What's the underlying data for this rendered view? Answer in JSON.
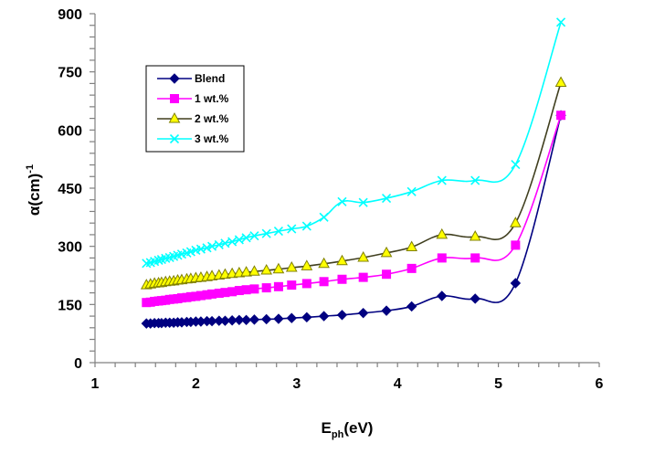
{
  "chart_data": {
    "type": "line",
    "title": "",
    "xlabel": "E",
    "xlabel_sub": "ph",
    "xlabel_suffix": "(eV)",
    "ylabel": "α(cm)",
    "ylabel_sup": "-1",
    "xlim": [
      1,
      6
    ],
    "ylim": [
      0,
      900
    ],
    "xticks": [
      1,
      2,
      3,
      4,
      5,
      6
    ],
    "xtick_labels": [
      "1",
      "2",
      "3",
      "4",
      "5",
      "6"
    ],
    "yticks": [
      0,
      150,
      300,
      450,
      600,
      750,
      900
    ],
    "ytick_labels": [
      "0",
      "150",
      "300",
      "450",
      "600",
      "750",
      "900"
    ],
    "grid": false,
    "legend_position": "top-left",
    "x": [
      1.51,
      1.55,
      1.59,
      1.63,
      1.66,
      1.7,
      1.74,
      1.78,
      1.82,
      1.86,
      1.91,
      1.95,
      2.0,
      2.05,
      2.11,
      2.16,
      2.23,
      2.29,
      2.36,
      2.43,
      2.5,
      2.58,
      2.7,
      2.82,
      2.95,
      3.1,
      3.27,
      3.45,
      3.66,
      3.89,
      4.14,
      4.44,
      4.77,
      5.17,
      5.62
    ],
    "series": [
      {
        "name": "Blend",
        "color": "#000080",
        "marker": "diamond",
        "values": [
          101,
          101,
          102,
          102,
          102,
          103,
          103,
          103,
          104,
          104,
          105,
          105,
          106,
          106,
          107,
          107,
          108,
          108,
          109,
          110,
          110,
          111,
          112,
          113,
          115,
          117,
          120,
          123,
          128,
          134,
          145,
          172,
          165,
          205,
          638
        ]
      },
      {
        "name": "1 wt.%",
        "color": "#ff00ff",
        "marker": "square",
        "values": [
          155,
          156,
          158,
          159,
          160,
          161,
          163,
          164,
          165,
          167,
          168,
          170,
          171,
          173,
          175,
          177,
          179,
          181,
          183,
          186,
          188,
          190,
          193,
          196,
          200,
          204,
          209,
          215,
          220,
          228,
          243,
          270,
          270,
          303,
          638
        ]
      },
      {
        "name": "2 wt.%",
        "color": "#403f1f",
        "marker_fill": "#ffff00",
        "marker": "triangle",
        "values": [
          200,
          202,
          204,
          205,
          206,
          208,
          209,
          210,
          212,
          213,
          215,
          216,
          218,
          219,
          221,
          223,
          225,
          227,
          229,
          231,
          233,
          235,
          238,
          241,
          245,
          249,
          255,
          262,
          271,
          283,
          298,
          330,
          325,
          360,
          722
        ]
      },
      {
        "name": "3 wt.%",
        "color": "#00ffff",
        "marker": "x",
        "values": [
          256,
          258,
          261,
          264,
          266,
          269,
          271,
          274,
          277,
          280,
          283,
          286,
          290,
          293,
          296,
          300,
          304,
          308,
          312,
          317,
          322,
          327,
          333,
          339,
          345,
          352,
          375,
          415,
          413,
          424,
          441,
          470,
          470,
          511,
          878
        ]
      }
    ]
  }
}
